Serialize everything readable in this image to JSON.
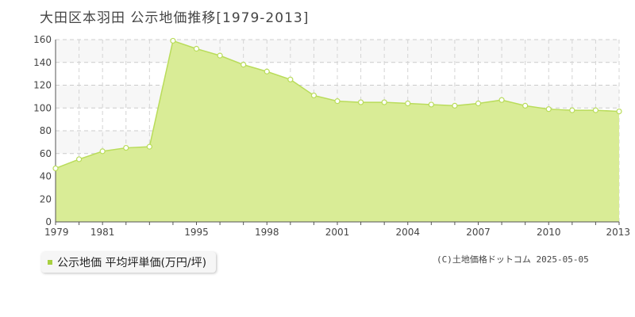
{
  "title": "大田区本羽田 公示地価推移[1979-2013]",
  "legend_label": "公示地価 平均坪単価(万円/坪)",
  "copyright": "(C)土地価格ドットコム 2025-05-05",
  "colors": {
    "fill": "#d9ec96",
    "line": "#b9dc5a",
    "marker_fill": "#ffffff",
    "legend": "#a8d040"
  },
  "chart_data": {
    "type": "area",
    "x": [
      1979,
      1980,
      1981,
      1982,
      1983,
      1994,
      1995,
      1996,
      1997,
      1998,
      1999,
      2000,
      2001,
      2002,
      2003,
      2004,
      2005,
      2006,
      2007,
      2008,
      2009,
      2010,
      2011,
      2012,
      2013
    ],
    "values": [
      47,
      55,
      62,
      65,
      66,
      159,
      152,
      146,
      138,
      132,
      125,
      111,
      106,
      105,
      105,
      104,
      103,
      102,
      104,
      107,
      102,
      99,
      98,
      98,
      97
    ],
    "xtick_labels": [
      "1979",
      "1981",
      "1995",
      "1998",
      "2001",
      "2004",
      "2007",
      "2010",
      "2013"
    ],
    "yticks": [
      0,
      20,
      40,
      60,
      80,
      100,
      120,
      140,
      160
    ],
    "ylim": [
      0,
      160
    ],
    "grid": true
  }
}
